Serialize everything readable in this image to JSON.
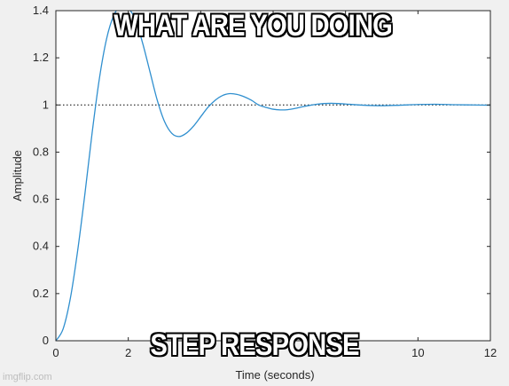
{
  "captions": {
    "top": "WHAT ARE YOU DOING",
    "bottom": "STEP RESPONSE"
  },
  "watermark": "imgflip.com",
  "chart_data": {
    "type": "line",
    "title": "",
    "xlabel": "Time (seconds)",
    "ylabel": "Amplitude",
    "xlim": [
      0,
      12
    ],
    "ylim": [
      0,
      1.4
    ],
    "xticks": [
      "0",
      "2",
      "4",
      "6",
      "8",
      "10",
      "12"
    ],
    "yticks": [
      "0",
      "0.2",
      "0.4",
      "0.6",
      "0.8",
      "1",
      "1.2",
      "1.4"
    ],
    "grid": false,
    "reference_line": {
      "y": 1,
      "style": "dotted",
      "color": "#000000"
    },
    "line_color": "#2f8fcf",
    "series": [
      {
        "x": [
          0,
          0.2,
          0.4,
          0.6,
          0.8,
          1.0,
          1.2,
          1.4,
          1.6,
          1.8,
          2.0,
          2.2,
          2.4,
          2.6,
          2.8,
          3.0,
          3.2,
          3.4,
          3.6,
          3.8,
          4.0,
          4.2,
          4.4,
          4.6,
          4.8,
          5.0,
          5.2,
          5.4,
          5.6,
          5.8,
          6.0,
          6.2,
          6.4,
          6.6,
          6.8,
          7.0,
          7.2,
          7.4,
          7.6,
          7.8,
          8.0,
          8.5,
          9.0,
          9.5,
          10.0,
          10.5,
          11.0,
          11.5,
          12.0
        ],
        "y": [
          0,
          0.05,
          0.18,
          0.38,
          0.62,
          0.88,
          1.11,
          1.28,
          1.38,
          1.42,
          1.41,
          1.36,
          1.26,
          1.14,
          1.02,
          0.93,
          0.88,
          0.866,
          0.88,
          0.91,
          0.95,
          0.99,
          1.02,
          1.04,
          1.048,
          1.045,
          1.035,
          1.02,
          1.0,
          0.99,
          0.982,
          0.979,
          0.98,
          0.985,
          0.992,
          0.998,
          1.003,
          1.006,
          1.007,
          1.006,
          1.004,
          0.999,
          0.997,
          0.999,
          1.002,
          1.003,
          1.001,
          1.0,
          0.999
        ]
      }
    ]
  }
}
